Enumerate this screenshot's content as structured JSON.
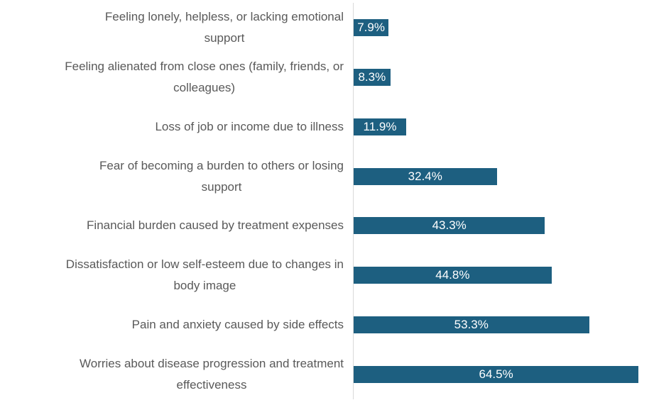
{
  "chart_data": {
    "type": "bar",
    "orientation": "horizontal",
    "title": "",
    "xlabel": "",
    "ylabel": "",
    "legend": false,
    "gridlines": false,
    "axis_max_percent": 68,
    "categories": [
      "Feeling lonely, helpless, or lacking emotional\nsupport",
      "Feeling alienated from close ones (family, friends, or\ncolleagues)",
      "Loss of job or income due to illness",
      "Fear of becoming a burden to others or losing\nsupport",
      "Financial burden caused by treatment expenses",
      "Dissatisfaction or low self-esteem due to changes in\nbody image",
      "Pain and anxiety caused by side effects",
      "Worries about disease progression and treatment\neffectiveness"
    ],
    "values": [
      7.9,
      8.3,
      11.9,
      32.4,
      43.3,
      44.8,
      53.3,
      64.5
    ],
    "value_labels": [
      "7.9%",
      "8.3%",
      "11.9%",
      "32.4%",
      "43.3%",
      "44.8%",
      "53.3%",
      "64.5%"
    ],
    "colors": {
      "bar_fill": "#1d5f80",
      "category_text": "#595959",
      "value_text": "#ffffff",
      "axis_line": "#d9d9d9",
      "background": "#ffffff"
    }
  }
}
